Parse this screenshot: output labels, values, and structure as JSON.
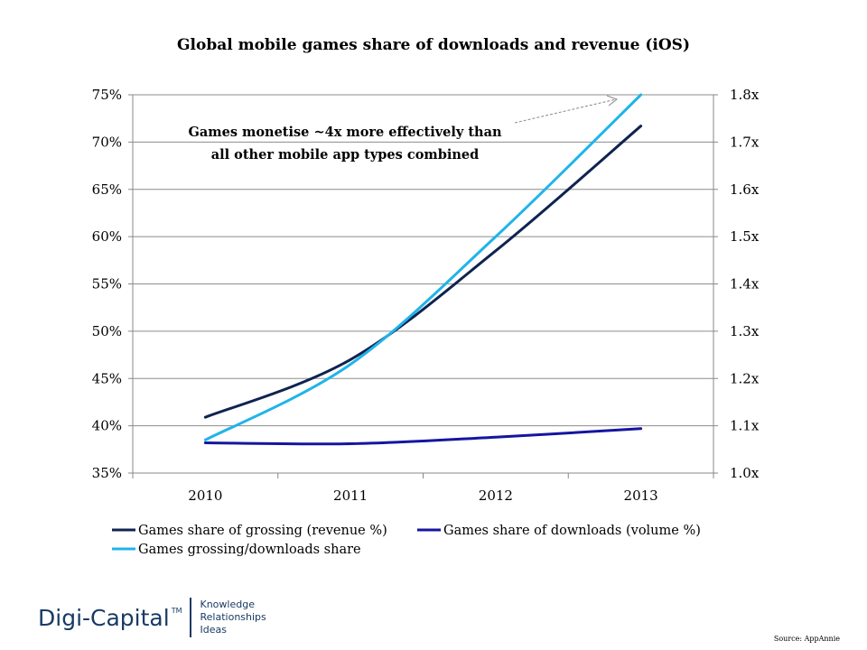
{
  "chart_data": {
    "type": "line",
    "title": "Global mobile games share of downloads and revenue (iOS)",
    "categories": [
      "2010",
      "2011",
      "2012",
      "2013"
    ],
    "y_left": {
      "ticks": [
        "35%",
        "40%",
        "45%",
        "50%",
        "55%",
        "60%",
        "65%",
        "70%",
        "75%"
      ],
      "range": [
        35,
        75
      ],
      "unit": "%"
    },
    "y_right": {
      "ticks": [
        "1.0x",
        "1.1x",
        "1.2x",
        "1.3x",
        "1.4x",
        "1.5x",
        "1.6x",
        "1.7x",
        "1.8x"
      ],
      "range": [
        1.0,
        1.8
      ]
    },
    "grid": true,
    "legend_position": "bottom",
    "series": [
      {
        "name": "Games share of grossing (revenue %)",
        "axis": "left",
        "color": "#0f2350",
        "values": [
          40.9,
          47.0,
          58.5,
          71.7
        ]
      },
      {
        "name": "Games share of downloads (volume %)",
        "axis": "left",
        "color": "#1515a0",
        "values": [
          38.2,
          38.1,
          38.8,
          39.7
        ]
      },
      {
        "name": "Games grossing/downloads share",
        "axis": "right",
        "color": "#1fb4ea",
        "values": [
          1.07,
          1.23,
          1.5,
          1.8
        ]
      }
    ],
    "annotations": [
      "Games monetise ~4x more effectively than",
      "all other mobile app types combined"
    ]
  },
  "logo": {
    "name": "Digi-Capital",
    "tm": "TM",
    "tagline": [
      "Knowledge",
      "Relationships",
      "Ideas"
    ]
  },
  "source_note": "Source: AppAnnie"
}
